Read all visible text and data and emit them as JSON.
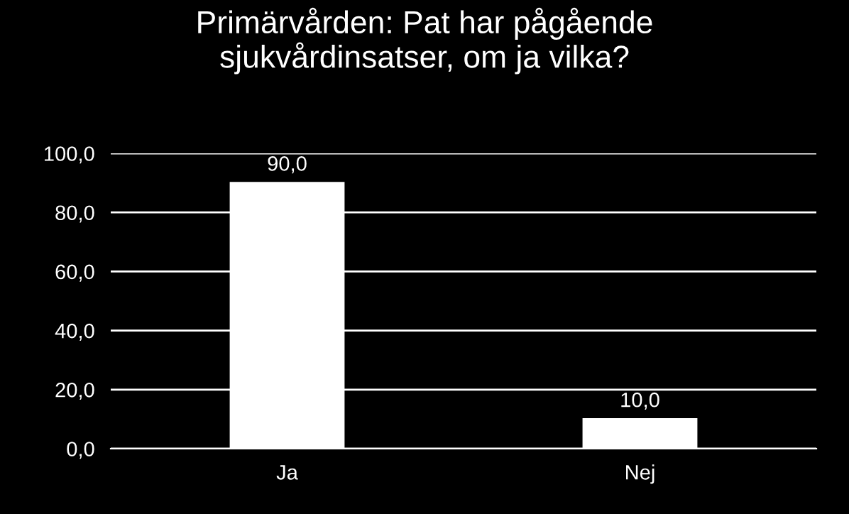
{
  "chart_data": {
    "type": "bar",
    "title": "Primärvården: Pat har pågående\nsjukvårdinsatser, om ja vilka?",
    "categories": [
      "Ja",
      "Nej"
    ],
    "values": [
      90,
      10
    ],
    "value_labels": [
      "90,0",
      "10,0"
    ],
    "color": "#ffffff",
    "ylim": [
      0,
      100
    ],
    "yticks": [
      {
        "value": 0,
        "label": "0,0"
      },
      {
        "value": 20,
        "label": "20,0"
      },
      {
        "value": 40,
        "label": "40,0"
      },
      {
        "value": 60,
        "label": "60,0"
      },
      {
        "value": 80,
        "label": "80,0"
      },
      {
        "value": 100,
        "label": "100,0"
      }
    ],
    "grid": "y"
  }
}
